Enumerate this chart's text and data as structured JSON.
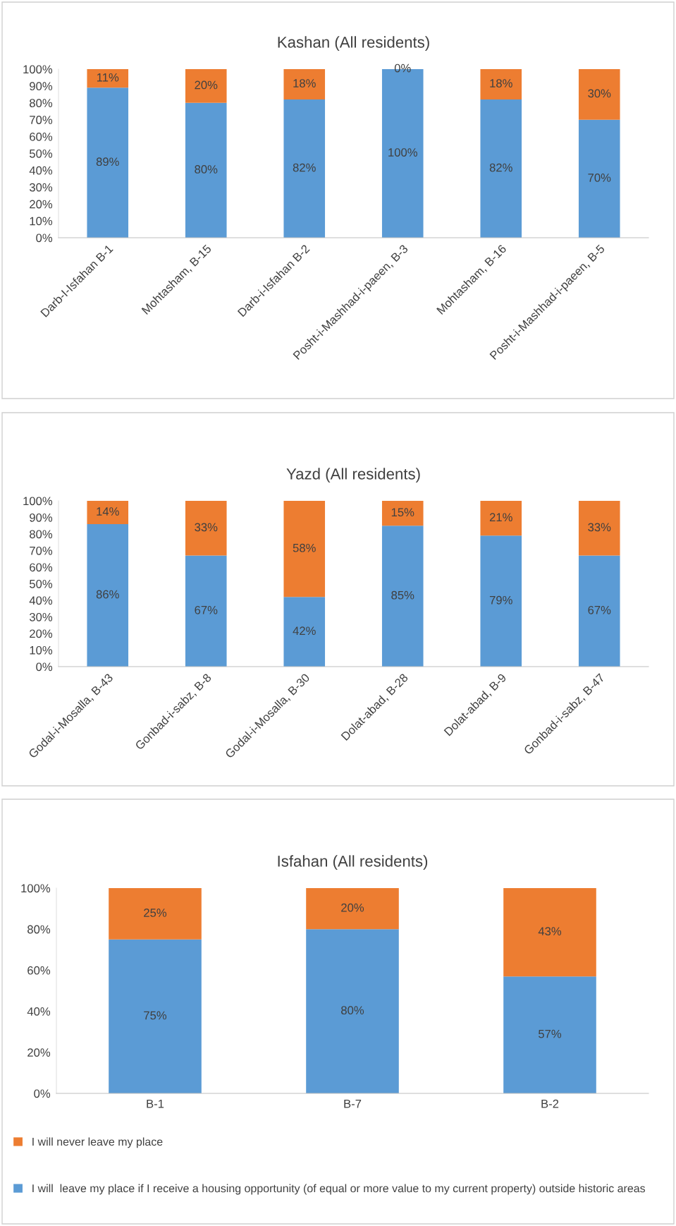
{
  "chart_data": [
    {
      "type": "bar",
      "stacked": true,
      "title": "Kashan (All residents)",
      "categories": [
        "Darb-I-Isfahan B-1",
        "Mohtasham, B-15",
        "Darb-i-Isfahan B-2",
        "Posht-i-Mashhad-i-paeen, B-3",
        "Mohtasham, B-16",
        "Posht-i-Mashhad-i-paeen, B-5"
      ],
      "series": [
        {
          "color": "#5b9bd5",
          "values": [
            89,
            80,
            82,
            100,
            82,
            70
          ],
          "value_labels": [
            "89%",
            "80%",
            "82%",
            "100%",
            "82%",
            "70%"
          ]
        },
        {
          "color": "#ed7d31",
          "values": [
            11,
            20,
            18,
            0,
            18,
            30
          ],
          "value_labels": [
            "11%",
            "20%",
            "18%",
            "0%",
            "18%",
            "30%"
          ]
        }
      ],
      "ylim": [
        0,
        100
      ],
      "yticks": [
        {
          "value": 0,
          "label": "0%"
        },
        {
          "value": 10,
          "label": "10%"
        },
        {
          "value": 20,
          "label": "20%"
        },
        {
          "value": 30,
          "label": "30%"
        },
        {
          "value": 40,
          "label": "40%"
        },
        {
          "value": 50,
          "label": "50%"
        },
        {
          "value": 60,
          "label": "60%"
        },
        {
          "value": 70,
          "label": "70%"
        },
        {
          "value": 80,
          "label": "80%"
        },
        {
          "value": 90,
          "label": "90%"
        },
        {
          "value": 100,
          "label": "100%"
        }
      ],
      "grid": false
    },
    {
      "type": "bar",
      "stacked": true,
      "title": "Yazd (All residents)",
      "categories": [
        "Godal-i-Mosalla, B-43",
        "Gonbad-i-sabz, B-8",
        "Godal-i-Mosalla, B-30",
        "Dolat-abad, B-28",
        "Dolat-abad, B-9",
        "Gonbad-i-sabz, B-47"
      ],
      "series": [
        {
          "color": "#5b9bd5",
          "values": [
            86,
            67,
            42,
            85,
            79,
            67
          ],
          "value_labels": [
            "86%",
            "67%",
            "42%",
            "85%",
            "79%",
            "67%"
          ]
        },
        {
          "color": "#ed7d31",
          "values": [
            14,
            33,
            58,
            15,
            21,
            33
          ],
          "value_labels": [
            "14%",
            "33%",
            "58%",
            "15%",
            "21%",
            "33%"
          ]
        }
      ],
      "ylim": [
        0,
        100
      ],
      "yticks": [
        {
          "value": 0,
          "label": "0%"
        },
        {
          "value": 10,
          "label": "10%"
        },
        {
          "value": 20,
          "label": "20%"
        },
        {
          "value": 30,
          "label": "30%"
        },
        {
          "value": 40,
          "label": "40%"
        },
        {
          "value": 50,
          "label": "50%"
        },
        {
          "value": 60,
          "label": "60%"
        },
        {
          "value": 70,
          "label": "70%"
        },
        {
          "value": 80,
          "label": "80%"
        },
        {
          "value": 90,
          "label": "90%"
        },
        {
          "value": 100,
          "label": "100%"
        }
      ],
      "grid": false
    },
    {
      "type": "bar",
      "stacked": true,
      "title": "Isfahan (All residents)",
      "categories": [
        "B-1",
        "B-7",
        "B-2"
      ],
      "series": [
        {
          "name": "I will  leave my place if I receive a housing opportunity (of equal or more value to my current property) outside historic areas",
          "color": "#5b9bd5",
          "values": [
            75,
            80,
            57
          ],
          "value_labels": [
            "75%",
            "80%",
            "57%"
          ]
        },
        {
          "name": "I will never leave my place",
          "color": "#ed7d31",
          "values": [
            25,
            20,
            43
          ],
          "value_labels": [
            "25%",
            "20%",
            "43%"
          ]
        }
      ],
      "ylim": [
        0,
        100
      ],
      "yticks": [
        {
          "value": 0,
          "label": "0%"
        },
        {
          "value": 20,
          "label": "20%"
        },
        {
          "value": 40,
          "label": "40%"
        },
        {
          "value": 60,
          "label": "60%"
        },
        {
          "value": 80,
          "label": "80%"
        },
        {
          "value": 100,
          "label": "100%"
        }
      ],
      "grid": false,
      "legend": "bottom"
    }
  ]
}
